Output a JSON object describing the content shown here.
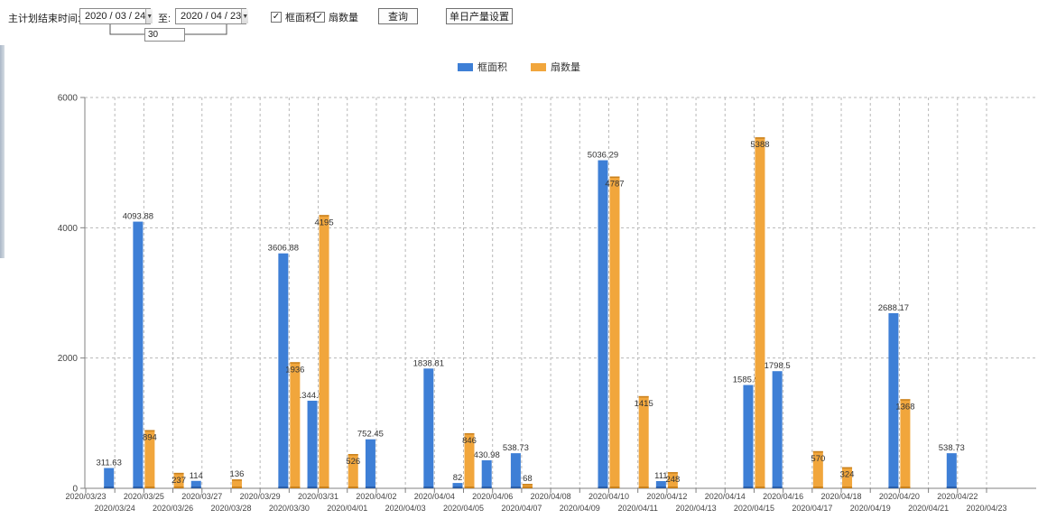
{
  "toolbar": {
    "plan_end_label": "主计划结束时间:",
    "date_from": "2020 / 03 / 24",
    "to_label": "至:",
    "date_to": "2020 / 04 / 23",
    "days_between": "30",
    "checkbox_frame_area": "框面积",
    "checkbox_fan_count": "扇数量",
    "checkbox_checked_glyph": "✓",
    "dropdown_glyph": "▼",
    "query_button": "查询",
    "daily_output_button": "单日产量设置"
  },
  "legend": {
    "frame_area": "框面积",
    "fan_count": "扇数量"
  },
  "colors": {
    "frame_area": "#3e7fd6",
    "frame_area_dark": "#2b5ea8",
    "fan_count": "#f1a63c",
    "fan_count_dark": "#c9811d",
    "axis": "#808080",
    "gridline": "#b8b8b8",
    "value_label": "#333333",
    "tick_label": "#444444"
  },
  "chart_data": {
    "type": "bar",
    "title": "",
    "xlabel": "",
    "ylabel": "",
    "ylim": [
      0,
      6000
    ],
    "yticks": [
      0,
      2000,
      4000,
      6000
    ],
    "grid": "dashed",
    "legend_position": "top-center",
    "categories": [
      "2020/03/23",
      "2020/03/24",
      "2020/03/25",
      "2020/03/26",
      "2020/03/27",
      "2020/03/28",
      "2020/03/29",
      "2020/03/30",
      "2020/03/31",
      "2020/04/01",
      "2020/04/02",
      "2020/04/03",
      "2020/04/04",
      "2020/04/05",
      "2020/04/06",
      "2020/04/07",
      "2020/04/08",
      "2020/04/09",
      "2020/04/10",
      "2020/04/11",
      "2020/04/12",
      "2020/04/13",
      "2020/04/14",
      "2020/04/15",
      "2020/04/16",
      "2020/04/17",
      "2020/04/18",
      "2020/04/19",
      "2020/04/20",
      "2020/04/21",
      "2020/04/22",
      "2020/04/23"
    ],
    "series": [
      {
        "name": "框面积",
        "values": [
          0,
          311.63,
          4093.88,
          0,
          114,
          0,
          0,
          3606.88,
          1344.95,
          0,
          752.45,
          0,
          1838.81,
          82,
          430.98,
          538.73,
          0,
          0,
          5036.29,
          0,
          111,
          0,
          0,
          1585.96,
          1798.5,
          0,
          0,
          0,
          2688.17,
          0,
          538.73,
          0
        ]
      },
      {
        "name": "扇数量",
        "values": [
          0,
          0,
          894,
          237,
          0,
          136,
          0,
          1936,
          4195,
          526,
          0,
          0,
          0,
          846,
          0,
          68,
          0,
          0,
          4787,
          1415,
          248,
          0,
          0,
          5388,
          0,
          570,
          324,
          0,
          1368,
          0,
          0,
          0
        ]
      }
    ]
  }
}
